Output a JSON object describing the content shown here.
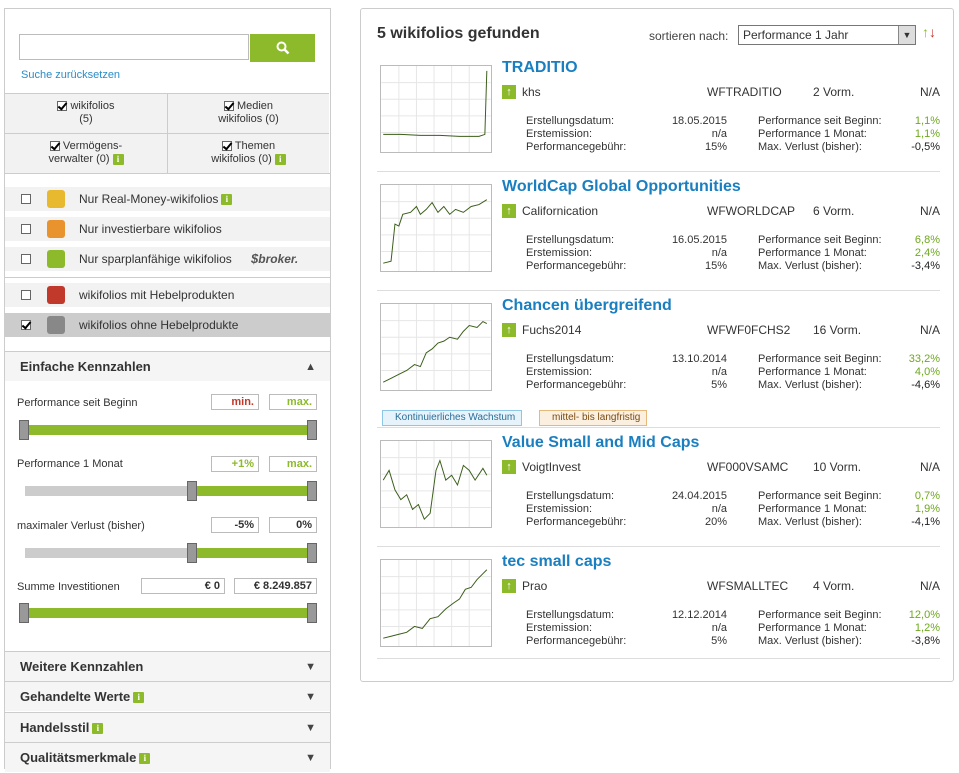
{
  "search": {
    "placeholder": "",
    "button_icon": "search-icon",
    "reset_link": "Suche zurücksetzen"
  },
  "categories": [
    {
      "label": "wikifolios",
      "count": "(5)",
      "checked": true
    },
    {
      "label": "Medien",
      "sub": "wikifolios (0)",
      "checked": true
    },
    {
      "label": "Vermögens-",
      "sub": "verwalter (0)",
      "checked": true,
      "info": true
    },
    {
      "label": "Themen",
      "sub": "wikifolios (0)",
      "checked": true,
      "info": true
    }
  ],
  "filters": [
    {
      "label": "Nur Real-Money-wikifolios",
      "checked": false,
      "icon": "real-money-icon",
      "color": "#e8b92e",
      "info": true
    },
    {
      "label": "Nur investierbare wikifolios",
      "checked": false,
      "icon": "investable-icon",
      "color": "#e8932e"
    },
    {
      "label": "Nur sparplanfähige wikifolios",
      "checked": false,
      "icon": "piggy-bank-icon",
      "color": "#8cba2b",
      "brand": "broker."
    },
    {
      "label": "wikifolios mit Hebelprodukten",
      "checked": false,
      "icon": "leverage-icon",
      "color": "#c0392b"
    },
    {
      "label": "wikifolios ohne Hebelprodukte",
      "checked": true,
      "icon": "no-leverage-icon",
      "color": "#888888"
    }
  ],
  "kennzahlen": {
    "title": "Einfache Kennzahlen",
    "perf_begin": {
      "label": "Performance seit Beginn",
      "min": "min.",
      "max": "max."
    },
    "perf_month": {
      "label": "Performance 1 Monat",
      "min": "+1%",
      "max": "max."
    },
    "max_loss": {
      "label": "maximaler Verlust (bisher)",
      "min": "-5%",
      "max": "0%"
    },
    "invest": {
      "label": "Summe Investitionen",
      "min": "€ 0",
      "max": "€ 8.249.857"
    }
  },
  "sections": [
    {
      "title": "Weitere Kennzahlen",
      "info": false
    },
    {
      "title": "Gehandelte Werte",
      "info": true
    },
    {
      "title": "Handelsstil",
      "info": true
    },
    {
      "title": "Qualitätsmerkmale",
      "info": true
    }
  ],
  "results": {
    "count_text": "5 wikifolios gefunden",
    "sort_label": "sortieren nach:",
    "sort_value": "Performance 1 Jahr",
    "items": [
      {
        "title": "TRADITIO",
        "user": "khs",
        "symbol": "WFTRADITIO",
        "vorm": "2 Vorm.",
        "na": "N/A",
        "erstellung": "18.05.2015",
        "erstemission": "n/a",
        "gebuehr": "15%",
        "perf_begin": "1,1%",
        "perf_month": "1,1%",
        "max_loss": "-0,5%"
      },
      {
        "title": "WorldCap Global Opportunities",
        "user": "Californication",
        "symbol": "WFWORLDCAP",
        "vorm": "6 Vorm.",
        "na": "N/A",
        "erstellung": "16.05.2015",
        "erstemission": "n/a",
        "gebuehr": "15%",
        "perf_begin": "6,8%",
        "perf_month": "2,4%",
        "max_loss": "-3,4%"
      },
      {
        "title": "Chancen übergreifend",
        "user": "Fuchs2014",
        "symbol": "WFWF0FCHS2",
        "vorm": "16 Vorm.",
        "na": "N/A",
        "erstellung": "13.10.2014",
        "erstemission": "n/a",
        "gebuehr": "5%",
        "perf_begin": "33,2%",
        "perf_month": "4,0%",
        "max_loss": "-4,6%",
        "tags": [
          "Kontinuierliches Wachstum",
          "mittel- bis langfristig"
        ]
      },
      {
        "title": "Value Small and Mid Caps",
        "user": "VoigtInvest",
        "symbol": "WF000VSAMC",
        "vorm": "10 Vorm.",
        "na": "N/A",
        "erstellung": "24.04.2015",
        "erstemission": "n/a",
        "gebuehr": "20%",
        "perf_begin": "0,7%",
        "perf_month": "1,9%",
        "max_loss": "-4,1%"
      },
      {
        "title": "tec small caps",
        "user": "Prao",
        "symbol": "WFSMALLTEC",
        "vorm": "4 Vorm.",
        "na": "N/A",
        "erstellung": "12.12.2014",
        "erstemission": "n/a",
        "gebuehr": "5%",
        "perf_begin": "12,0%",
        "perf_month": "1,2%",
        "max_loss": "-3,8%"
      }
    ]
  },
  "labels": {
    "erstellung": "Erstellungsdatum:",
    "erstemission": "Erstemission:",
    "gebuehr": "Performancegebühr:",
    "perf_begin": "Performance seit Beginn:",
    "perf_month": "Performance 1 Monat:",
    "max_loss": "Max. Verlust (bisher):"
  }
}
